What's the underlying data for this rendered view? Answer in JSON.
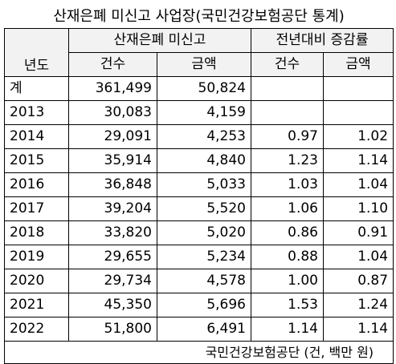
{
  "title": "산재은폐 미신고 사업장(국민건강보험공단 통계)",
  "header": {
    "year_label": "년도",
    "group1_label": "산재은폐 미신고",
    "group2_label": "전년대비 증감률",
    "count_label": "건수",
    "amount_label": "금액",
    "rate_count_label": "건수",
    "rate_amount_label": "금액"
  },
  "rows": [
    {
      "year": "계",
      "count": "361,499",
      "amount": "50,824",
      "rate_count": "",
      "rate_amount": ""
    },
    {
      "year": "2013",
      "count": "30,083",
      "amount": "4,159",
      "rate_count": "",
      "rate_amount": ""
    },
    {
      "year": "2014",
      "count": "29,091",
      "amount": "4,253",
      "rate_count": "0.97",
      "rate_amount": "1.02"
    },
    {
      "year": "2015",
      "count": "35,914",
      "amount": "4,840",
      "rate_count": "1.23",
      "rate_amount": "1.14"
    },
    {
      "year": "2016",
      "count": "36,848",
      "amount": "5,033",
      "rate_count": "1.03",
      "rate_amount": "1.04"
    },
    {
      "year": "2017",
      "count": "39,204",
      "amount": "5,520",
      "rate_count": "1.06",
      "rate_amount": "1.10"
    },
    {
      "year": "2018",
      "count": "33,820",
      "amount": "5,020",
      "rate_count": "0.86",
      "rate_amount": "0.91"
    },
    {
      "year": "2019",
      "count": "29,655",
      "amount": "5,234",
      "rate_count": "0.88",
      "rate_amount": "1.04"
    },
    {
      "year": "2020",
      "count": "29,734",
      "amount": "4,578",
      "rate_count": "1.00",
      "rate_amount": "0.87"
    },
    {
      "year": "2021",
      "count": "45,350",
      "amount": "5,696",
      "rate_count": "1.53",
      "rate_amount": "1.24"
    },
    {
      "year": "2022",
      "count": "51,800",
      "amount": "6,491",
      "rate_count": "1.14",
      "rate_amount": "1.14"
    }
  ],
  "source": "국민건강보험공단 (건, 백만 원)",
  "colors": {
    "header_bg": "#f2f2f2",
    "border": "#000000"
  }
}
